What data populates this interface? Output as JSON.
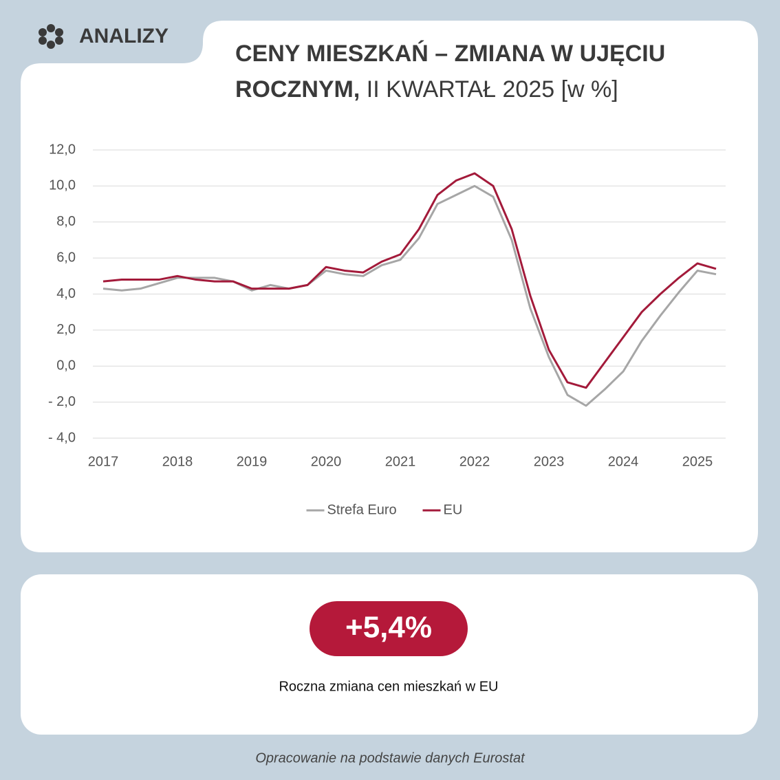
{
  "header": {
    "logo": "ANALIZY"
  },
  "chart_data": {
    "type": "line",
    "title": "CENY MIESZKAŃ – ZMIANA W UJĘCIU ROCZNYM,",
    "subtitle": "II KWARTAŁ 2025 [w %]",
    "categories": [
      "2017",
      null,
      null,
      null,
      "2018",
      null,
      null,
      null,
      "2019",
      null,
      null,
      null,
      "2020",
      null,
      null,
      null,
      "2021",
      null,
      null,
      null,
      "2022",
      null,
      null,
      null,
      "2023",
      null,
      null,
      null,
      "2024",
      null,
      null,
      null,
      "2025",
      null
    ],
    "series": [
      {
        "name": "Strefa Euro",
        "color": "#a6a6a6",
        "values": [
          4.3,
          4.2,
          4.3,
          4.6,
          4.9,
          4.9,
          4.9,
          4.7,
          4.2,
          4.5,
          4.3,
          4.5,
          5.3,
          5.1,
          5.0,
          5.6,
          5.9,
          7.1,
          9.0,
          9.5,
          10.0,
          9.4,
          7.0,
          3.2,
          0.5,
          -1.6,
          -2.2,
          -1.3,
          -0.3,
          1.4,
          2.8,
          4.1,
          5.3,
          5.1
        ]
      },
      {
        "name": "EU",
        "color": "#a31a3a",
        "values": [
          4.7,
          4.8,
          4.8,
          4.8,
          5.0,
          4.8,
          4.7,
          4.7,
          4.3,
          4.3,
          4.3,
          4.5,
          5.5,
          5.3,
          5.2,
          5.8,
          6.2,
          7.6,
          9.5,
          10.3,
          10.7,
          10.0,
          7.6,
          3.9,
          0.9,
          -0.9,
          -1.2,
          0.2,
          1.6,
          3.0,
          4.0,
          4.9,
          5.7,
          5.4
        ]
      }
    ],
    "ylim": [
      -4,
      12
    ],
    "yticks": [
      {
        "value": 12,
        "label": "12,0"
      },
      {
        "value": 10,
        "label": "10,0"
      },
      {
        "value": 8,
        "label": "8,0"
      },
      {
        "value": 6,
        "label": "6,0"
      },
      {
        "value": 4,
        "label": "4,0"
      },
      {
        "value": 2,
        "label": "2,0"
      },
      {
        "value": 0,
        "label": "0,0"
      },
      {
        "value": -2,
        "label": "- 2,0"
      },
      {
        "value": -4,
        "label": "- 4,0"
      }
    ],
    "grid": true,
    "legend": "bottom"
  },
  "highlight": {
    "value": "+5,4%",
    "caption": "Roczna zmiana cen mieszkań w EU"
  },
  "footer": {
    "source": "Opracowanie na podstawie danych Eurostat"
  }
}
